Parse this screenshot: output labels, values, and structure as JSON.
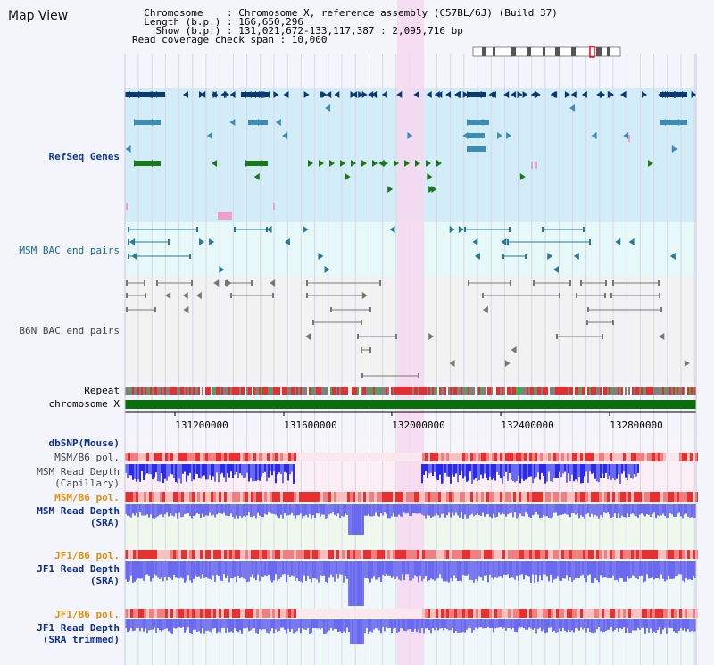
{
  "header": {
    "title": "Map View",
    "info_lines": [
      "  Chromosome    : Chromosome X, reference assembly (C57BL/6J) (Build 37)",
      "  Length (b.p.) : 166,650,296",
      "    Show (b.p.) : 131,021,672-133,117,387 : 2,095,716 bp",
      "Read coverage check span : 10,000"
    ]
  },
  "tracks": {
    "refseq": "RefSeq Genes",
    "msm_bac": "MSM BAC end pairs",
    "b6n_bac": "B6N BAC end pairs",
    "repeat": "Repeat",
    "chromosome": "chromosome X",
    "dbsnp": "dbSNP(Mouse)",
    "msm_b6_pol_1": "MSM/B6 pol.",
    "msm_read_depth_cap": [
      "MSM Read Depth",
      "(Capillary)"
    ],
    "msm_b6_pol_2": "MSM/B6 pol.",
    "msm_read_depth_sra": [
      "MSM Read Depth",
      "(SRA)"
    ],
    "jf1_b6_pol_1": "JF1/B6 pol.",
    "jf1_read_depth_sra": [
      "JF1 Read Depth",
      "(SRA)"
    ],
    "jf1_b6_pol_2": "JF1/B6 pol.",
    "jf1_read_depth_trim": [
      "JF1 Read Depth",
      "(SRA trimmed)"
    ]
  },
  "axis": {
    "ticks": [
      "131200000",
      "131600000",
      "132000000",
      "132400000",
      "132800000"
    ]
  },
  "colors": {
    "refseq_bg": "#d2ecf8",
    "msm_bg": "#e6f8f8",
    "highlight": "#f7d8f0",
    "chromosome": "#0a6e0a",
    "dark_gene": "#0a3a70",
    "mid_gene": "#3c8cb4",
    "green_gene": "#1a7a1a",
    "depth_dark": "#2a2ae8",
    "depth_light": "#7a7aee"
  }
}
